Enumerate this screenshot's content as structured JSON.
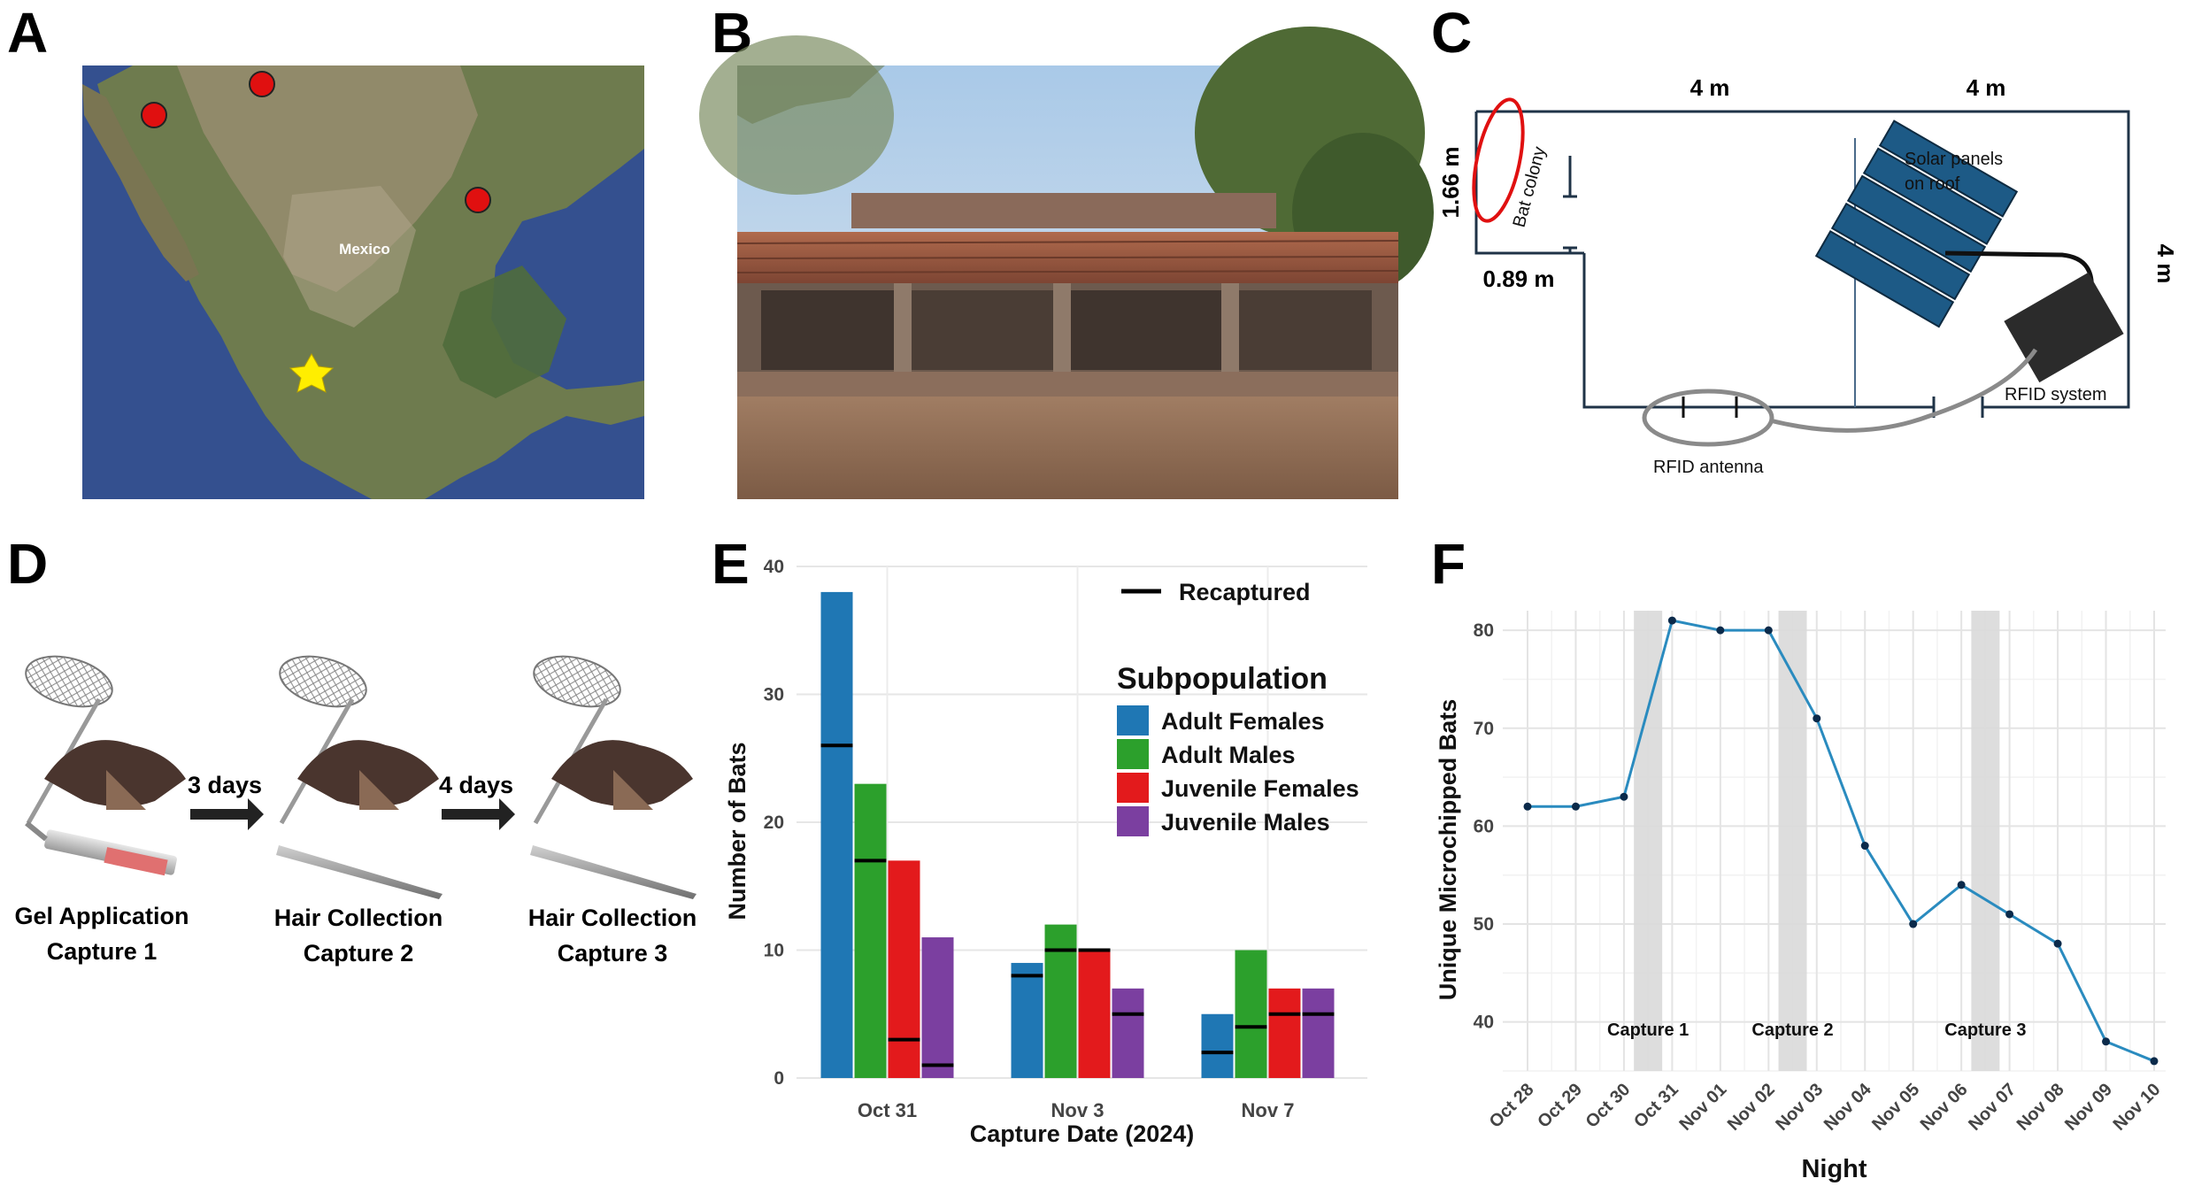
{
  "panels": {
    "a": {
      "letter": "A",
      "map_label": "Mexico",
      "colors": {
        "ocean": "#3a5a9e",
        "land": "#6f7d50",
        "dot": "#e01010",
        "star": "#ffee00"
      }
    },
    "b": {
      "letter": "B"
    },
    "c": {
      "letter": "C",
      "dim_top_left": "4 m",
      "dim_top_right": "4 m",
      "dim_left": "1.66 m",
      "dim_door": "0.89 m",
      "dim_right": "4 m",
      "bat_colony": "Bat colony",
      "solar_line1": "Solar panels",
      "solar_line2": "on roof",
      "rfid_system": "RFID system",
      "rfid_antenna": "RFID antenna",
      "colors": {
        "wall": "#1f3347",
        "panel": "#1d5a86",
        "colony": "#e01010"
      }
    },
    "d": {
      "letter": "D",
      "arrow1": "3 days",
      "arrow2": "4 days",
      "step1_line1": "Gel Application",
      "step1_line2": "Capture 1",
      "step2_line1": "Hair Collection",
      "step2_line2": "Capture 2",
      "step3_line1": "Hair Collection",
      "step3_line2": "Capture 3"
    },
    "e": {
      "letter": "E"
    },
    "f": {
      "letter": "F"
    }
  },
  "chart_data": [
    {
      "type": "bar",
      "panel": "E",
      "xlabel": "Capture Date (2024)",
      "ylabel": "Number of Bats",
      "ylim": [
        0,
        40
      ],
      "yticks": [
        0,
        10,
        20,
        30,
        40
      ],
      "categories": [
        "Oct 31",
        "Nov 3",
        "Nov 7"
      ],
      "legend_title": "Subpopulation",
      "legend_recaptured": "Recaptured",
      "legend_position": "right",
      "series": [
        {
          "name": "Adult Females",
          "color": "#1f77b4",
          "values": [
            38,
            9,
            5
          ],
          "recaptured": [
            26,
            8,
            2
          ]
        },
        {
          "name": "Adult Males",
          "color": "#2ca02c",
          "values": [
            23,
            12,
            10
          ],
          "recaptured": [
            17,
            10,
            4
          ]
        },
        {
          "name": "Juvenile Females",
          "color": "#e31a1c",
          "values": [
            17,
            10,
            7
          ],
          "recaptured": [
            3,
            10,
            5
          ]
        },
        {
          "name": "Juvenile Males",
          "color": "#7b3fa0",
          "values": [
            11,
            7,
            7
          ],
          "recaptured": [
            1,
            5,
            5
          ]
        }
      ],
      "grid": true
    },
    {
      "type": "line",
      "panel": "F",
      "xlabel": "Night",
      "ylabel": "Unique Microchipped Bats",
      "ylim": [
        35,
        82
      ],
      "yticks": [
        40,
        50,
        60,
        70,
        80
      ],
      "x": [
        "Oct 28",
        "Oct 29",
        "Oct 30",
        "Oct 31",
        "Nov 01",
        "Nov 02",
        "Nov 03",
        "Nov 04",
        "Nov 05",
        "Nov 06",
        "Nov 07",
        "Nov 08",
        "Nov 09",
        "Nov 10"
      ],
      "values": [
        62,
        62,
        63,
        81,
        80,
        80,
        71,
        58,
        50,
        54,
        51,
        48,
        38,
        36
      ],
      "line_color": "#2a8bbf",
      "point_color": "#0b2a4a",
      "shaded_nights": [
        {
          "between": [
            "Oct 30",
            "Oct 31"
          ],
          "label": "Capture 1"
        },
        {
          "between": [
            "Nov 02",
            "Nov 03"
          ],
          "label": "Capture 2"
        },
        {
          "between": [
            "Nov 06",
            "Nov 07"
          ],
          "label": "Capture 3"
        }
      ],
      "grid": true
    }
  ]
}
